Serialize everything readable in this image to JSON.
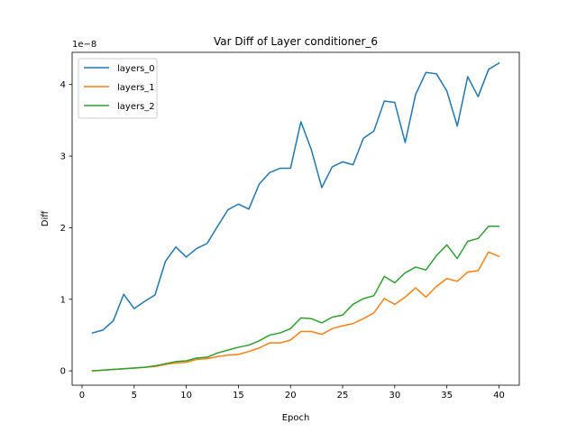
{
  "chart_data": {
    "type": "line",
    "title": "Var Diff of Layer conditioner_6",
    "xlabel": "Epoch",
    "ylabel": "Diff",
    "y_scale_label": "1e−8",
    "xlim": [
      -0.95,
      41.95
    ],
    "ylim": [
      -0.2,
      4.45
    ],
    "x_ticks": [
      0,
      5,
      10,
      15,
      20,
      25,
      30,
      35,
      40
    ],
    "y_ticks": [
      0,
      1,
      2,
      3,
      4
    ],
    "grid": false,
    "legend_position": "top-left",
    "x": [
      1,
      2,
      3,
      4,
      5,
      6,
      7,
      8,
      9,
      10,
      11,
      12,
      13,
      14,
      15,
      16,
      17,
      18,
      19,
      20,
      21,
      22,
      23,
      24,
      25,
      26,
      27,
      28,
      29,
      30,
      31,
      32,
      33,
      34,
      35,
      36,
      37,
      38,
      39,
      40
    ],
    "series": [
      {
        "name": "layers_0",
        "color": "#1f77b4",
        "values": [
          0.53,
          0.57,
          0.7,
          1.07,
          0.87,
          0.97,
          1.06,
          1.53,
          1.73,
          1.59,
          1.71,
          1.78,
          2.02,
          2.25,
          2.33,
          2.26,
          2.61,
          2.77,
          2.83,
          2.83,
          3.48,
          3.09,
          2.56,
          2.85,
          2.92,
          2.88,
          3.25,
          3.35,
          3.77,
          3.75,
          3.19,
          3.86,
          4.17,
          4.15,
          3.91,
          3.42,
          4.11,
          3.83,
          4.21,
          4.3
        ]
      },
      {
        "name": "layers_1",
        "color": "#ff7f0e",
        "values": [
          0.0,
          0.01,
          0.02,
          0.03,
          0.04,
          0.05,
          0.06,
          0.09,
          0.11,
          0.12,
          0.16,
          0.17,
          0.2,
          0.22,
          0.23,
          0.27,
          0.32,
          0.39,
          0.39,
          0.43,
          0.55,
          0.55,
          0.51,
          0.59,
          0.63,
          0.66,
          0.73,
          0.81,
          1.01,
          0.93,
          1.03,
          1.16,
          1.03,
          1.18,
          1.29,
          1.25,
          1.38,
          1.4,
          1.66,
          1.6
        ]
      },
      {
        "name": "layers_2",
        "color": "#2ca02c",
        "values": [
          0.0,
          0.01,
          0.02,
          0.03,
          0.04,
          0.05,
          0.07,
          0.1,
          0.13,
          0.14,
          0.18,
          0.19,
          0.25,
          0.29,
          0.33,
          0.36,
          0.42,
          0.5,
          0.53,
          0.59,
          0.74,
          0.73,
          0.67,
          0.75,
          0.78,
          0.93,
          1.01,
          1.05,
          1.32,
          1.23,
          1.37,
          1.45,
          1.41,
          1.61,
          1.76,
          1.57,
          1.81,
          1.85,
          2.02,
          2.02
        ]
      }
    ]
  }
}
